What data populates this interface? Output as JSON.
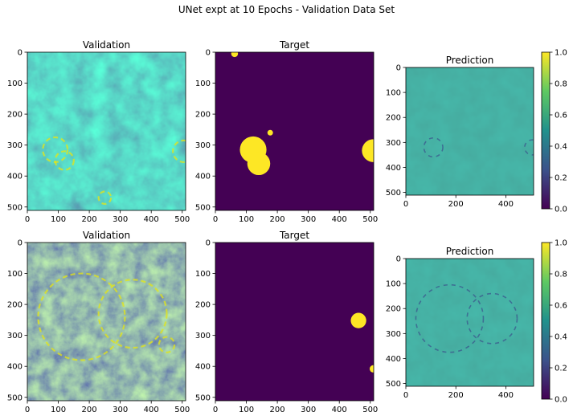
{
  "suptitle": "UNet expt at 10 Epochs - Validation Data Set",
  "chart_data": [
    {
      "type": "heatmap",
      "title": "Validation",
      "row": 1,
      "col": 1,
      "xticks": [
        0,
        100,
        200,
        300,
        400,
        500
      ],
      "yticks": [
        0,
        100,
        200,
        300,
        400,
        500
      ],
      "xlim": [
        0,
        511
      ],
      "ylim": [
        511,
        0
      ],
      "content": "terrain-image",
      "colormap": "viridis"
    },
    {
      "type": "heatmap",
      "title": "Target",
      "row": 1,
      "col": 2,
      "xticks": [
        0,
        100,
        200,
        300,
        400,
        500
      ],
      "yticks": [
        0,
        100,
        200,
        300,
        400,
        500
      ],
      "xlim": [
        0,
        511
      ],
      "ylim": [
        511,
        0
      ],
      "content": "binary-mask",
      "colormap": "viridis",
      "circles": [
        {
          "x": 62,
          "y": 5,
          "r": 11
        },
        {
          "x": 122,
          "y": 315,
          "r": 43
        },
        {
          "x": 140,
          "y": 360,
          "r": 37
        },
        {
          "x": 177,
          "y": 260,
          "r": 9
        },
        {
          "x": 510,
          "y": 318,
          "r": 37
        }
      ]
    },
    {
      "type": "heatmap",
      "title": "Prediction",
      "row": 1,
      "col": 3,
      "xticks": [
        0,
        200,
        400
      ],
      "yticks": [
        0,
        100,
        200,
        300,
        400,
        500
      ],
      "xlim": [
        0,
        511
      ],
      "ylim": [
        511,
        0
      ],
      "content": "prediction-image",
      "colormap": "viridis",
      "colorbar": {
        "ticks": [
          "0.0",
          "0.2",
          "0.4",
          "0.6",
          "0.8",
          "1.0"
        ],
        "range": [
          0,
          1
        ]
      }
    },
    {
      "type": "heatmap",
      "title": "Validation",
      "row": 2,
      "col": 1,
      "xticks": [
        0,
        100,
        200,
        300,
        400,
        500
      ],
      "yticks": [
        0,
        100,
        200,
        300,
        400,
        500
      ],
      "xlim": [
        0,
        511
      ],
      "ylim": [
        511,
        0
      ],
      "content": "terrain-image",
      "colormap": "viridis"
    },
    {
      "type": "heatmap",
      "title": "Target",
      "row": 2,
      "col": 2,
      "xticks": [
        0,
        100,
        200,
        300,
        400,
        500
      ],
      "yticks": [
        0,
        100,
        200,
        300,
        400,
        500
      ],
      "xlim": [
        0,
        511
      ],
      "ylim": [
        511,
        0
      ],
      "content": "binary-mask",
      "colormap": "viridis",
      "circles": [
        {
          "x": 462,
          "y": 252,
          "r": 25
        },
        {
          "x": 510,
          "y": 408,
          "r": 12
        }
      ]
    },
    {
      "type": "heatmap",
      "title": "Prediction",
      "row": 2,
      "col": 3,
      "xticks": [
        0,
        200,
        400
      ],
      "yticks": [
        0,
        100,
        200,
        300,
        400,
        500
      ],
      "xlim": [
        0,
        511
      ],
      "ylim": [
        511,
        0
      ],
      "content": "prediction-image",
      "colormap": "viridis",
      "colorbar": {
        "ticks": [
          "0.0",
          "0.2",
          "0.4",
          "0.6",
          "0.8",
          "1.0"
        ],
        "range": [
          0,
          1
        ]
      }
    }
  ],
  "colors": {
    "mask_background": "#440154",
    "mask_foreground": "#fde725",
    "prediction_base": "#2a9c8a",
    "viridis": [
      "#440154",
      "#3b528b",
      "#21918c",
      "#5ec962",
      "#fde725"
    ]
  }
}
